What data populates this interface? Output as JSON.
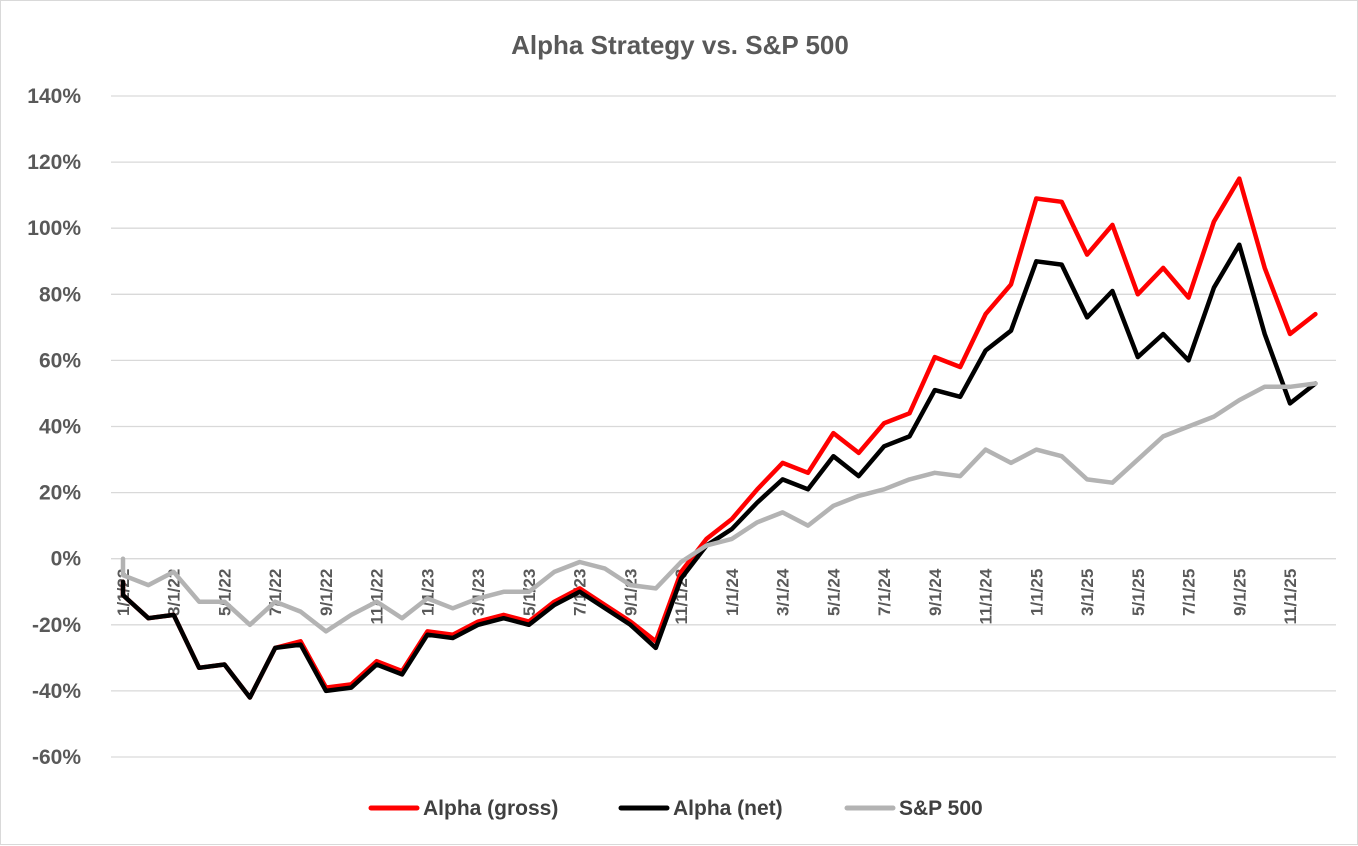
{
  "chart_data": {
    "type": "line",
    "title": "Alpha Strategy vs. S&P 500",
    "xlabel": "",
    "ylabel": "",
    "ylim": [
      -60,
      140
    ],
    "yticks": [
      140,
      120,
      100,
      80,
      60,
      40,
      20,
      0,
      -20,
      -40,
      -60
    ],
    "ytick_labels": [
      "140%",
      "120%",
      "100%",
      "80%",
      "60%",
      "40%",
      "20%",
      "0%",
      "-20%",
      "-40%",
      "-60%"
    ],
    "xtick_labels": [
      "1/1/22",
      "3/1/22",
      "5/1/22",
      "7/1/22",
      "9/1/22",
      "11/1/22",
      "1/1/23",
      "3/1/23",
      "5/1/23",
      "7/1/23",
      "9/1/23",
      "11/1/23",
      "1/1/24",
      "3/1/24",
      "5/1/24",
      "7/1/24",
      "9/1/24",
      "11/1/24",
      "1/1/25",
      "3/1/25",
      "5/1/25",
      "7/1/25",
      "9/1/25",
      "11/1/25"
    ],
    "legend_position": "bottom",
    "grid": true,
    "series": [
      {
        "name": "Alpha (gross)",
        "color": "#ff0000",
        "start_value": -7,
        "values": [
          -11,
          -18,
          -17,
          -33,
          -32,
          -42,
          -27,
          -25,
          -39,
          -38,
          -31,
          -34,
          -22,
          -23,
          -19,
          -17,
          -19,
          -13,
          -9,
          -14,
          -19,
          -25,
          -4,
          6,
          12,
          21,
          29,
          26,
          38,
          32,
          41,
          44,
          61,
          58,
          74,
          83,
          109,
          108,
          92,
          101,
          80,
          88,
          79,
          102,
          115,
          88,
          68,
          74
        ]
      },
      {
        "name": "Alpha (net)",
        "color": "#000000",
        "start_value": -7,
        "values": [
          -11,
          -18,
          -17,
          -33,
          -32,
          -42,
          -27,
          -26,
          -40,
          -39,
          -32,
          -35,
          -23,
          -24,
          -20,
          -18,
          -20,
          -14,
          -10,
          -15,
          -20,
          -27,
          -6,
          4,
          9,
          17,
          24,
          21,
          31,
          25,
          34,
          37,
          51,
          49,
          63,
          69,
          90,
          89,
          73,
          81,
          61,
          68,
          60,
          82,
          95,
          68,
          47,
          53
        ]
      },
      {
        "name": "S&P 500",
        "color": "#b3b3b3",
        "start_value": 0,
        "values": [
          -5,
          -8,
          -4,
          -13,
          -13,
          -20,
          -13,
          -16,
          -22,
          -17,
          -13,
          -18,
          -12,
          -15,
          -12,
          -10,
          -10,
          -4,
          -1,
          -3,
          -8,
          -9,
          -1,
          4,
          6,
          11,
          14,
          10,
          16,
          19,
          21,
          24,
          26,
          25,
          33,
          29,
          33,
          31,
          24,
          23,
          30,
          37,
          40,
          43,
          48,
          52,
          52,
          53
        ]
      }
    ]
  }
}
